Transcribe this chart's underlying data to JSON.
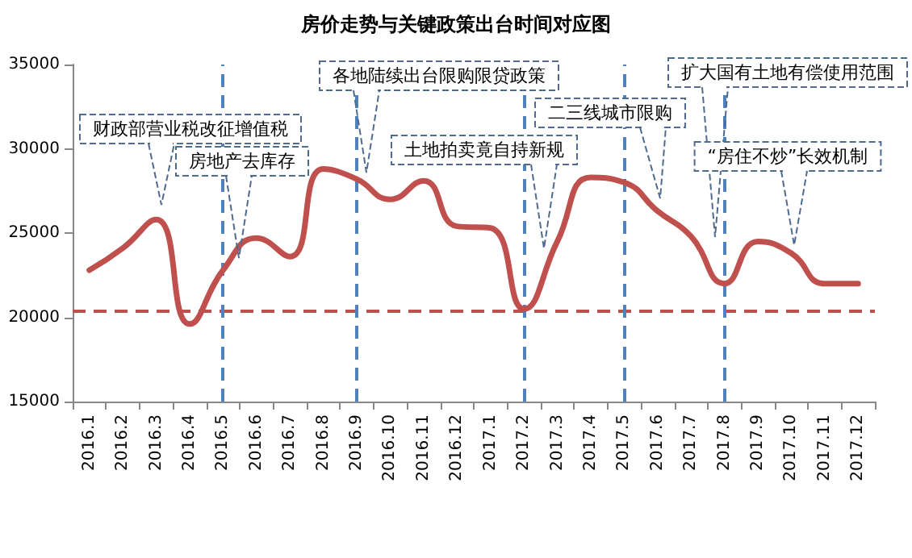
{
  "chart_data": {
    "type": "line",
    "title": "房价走势与关键政策出台时间对应图",
    "categories": [
      "2016.1",
      "2016.2",
      "2016.3",
      "2016.4",
      "2016.5",
      "2016.6",
      "2016.7",
      "2016.8",
      "2016.9",
      "2016.10",
      "2016.11",
      "2016.12",
      "2017.1",
      "2017.2",
      "2017.3",
      "2017.4",
      "2017.5",
      "2017.6",
      "2017.7",
      "2017.8",
      "2017.9",
      "2017.10",
      "2017.11",
      "2017.12"
    ],
    "series": [
      {
        "color": "#c0504d",
        "values": [
          22800,
          24100,
          25800,
          19600,
          22800,
          24700,
          23600,
          28800,
          28200,
          27000,
          28100,
          25400,
          25300,
          20500,
          24500,
          28300,
          28000,
          26300,
          24800,
          22000,
          24500,
          23800,
          22000,
          22000
        ]
      }
    ],
    "ylim": [
      15000,
      35000
    ],
    "yticks": [
      15000,
      20000,
      25000,
      30000,
      35000
    ],
    "grid": false,
    "marker": "none",
    "line_style": "solid",
    "ref_lines": [
      {
        "axis": "y",
        "value": 20400,
        "color": "#c0504d",
        "line_style": "dashed"
      },
      {
        "axis": "x",
        "value": "2016.5",
        "color": "#4f81bd",
        "line_style": "dashed"
      },
      {
        "axis": "x",
        "value": "2016.9",
        "color": "#4f81bd",
        "line_style": "dashed"
      },
      {
        "axis": "x",
        "value": "2017.2",
        "color": "#4f81bd",
        "line_style": "dashed"
      },
      {
        "axis": "x",
        "value": "2017.5",
        "color": "#4f81bd",
        "line_style": "dashed"
      },
      {
        "axis": "x",
        "value": "2017.8",
        "color": "#4f81bd",
        "line_style": "dashed"
      }
    ],
    "annotations": [
      "财政部营业税改征增值税",
      "房地产去库存",
      "各地陆续出台限购限贷政策",
      "土地拍卖竟自持新规",
      "二三线城市限购",
      "扩大国有土地有偿使用范围",
      "“房住不炒”长效机制"
    ]
  }
}
